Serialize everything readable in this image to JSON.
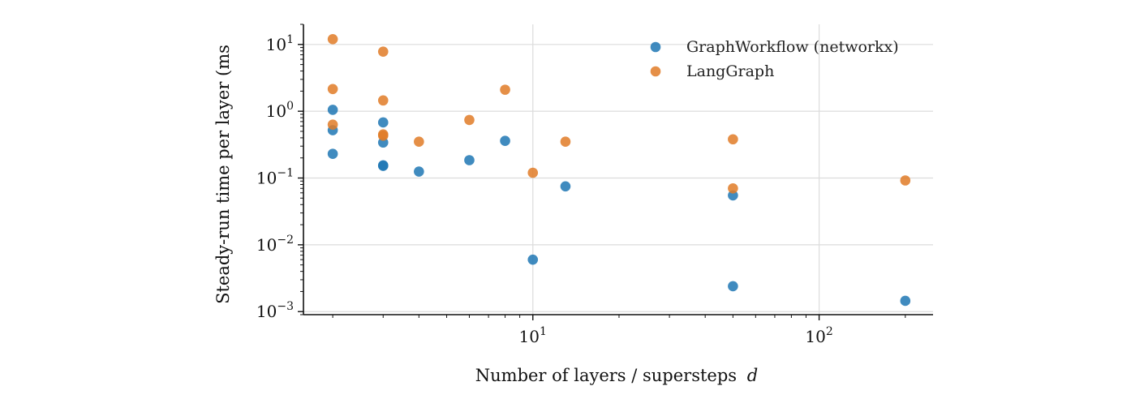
{
  "chart_data": {
    "type": "scatter",
    "title": "",
    "xlabel": "Number of layers / supersteps",
    "xlabel_var": "d",
    "ylabel": "Steady-run time per layer (ms",
    "xscale": "log",
    "yscale": "log",
    "xlim": [
      1.58,
      250
    ],
    "ylim": [
      0.0009,
      20
    ],
    "x_ticks": [
      {
        "value": 10,
        "base": "10",
        "exp": "1"
      },
      {
        "value": 100,
        "base": "10",
        "exp": "2"
      }
    ],
    "y_ticks": [
      {
        "value": 0.001,
        "base": "10",
        "exp": "−3"
      },
      {
        "value": 0.01,
        "base": "10",
        "exp": "−2"
      },
      {
        "value": 0.1,
        "base": "10",
        "exp": "−1"
      },
      {
        "value": 1,
        "base": "10",
        "exp": "0"
      },
      {
        "value": 10,
        "base": "10",
        "exp": "1"
      }
    ],
    "grid": true,
    "legend_position": "top-right",
    "series": [
      {
        "name": "GraphWorkflow (networkx)",
        "color": "#1f77b4",
        "points": [
          {
            "x": 2,
            "y": 1.05
          },
          {
            "x": 2,
            "y": 0.52
          },
          {
            "x": 2,
            "y": 0.23
          },
          {
            "x": 3,
            "y": 0.68
          },
          {
            "x": 3,
            "y": 0.34
          },
          {
            "x": 3,
            "y": 0.155
          },
          {
            "x": 3,
            "y": 0.152
          },
          {
            "x": 4,
            "y": 0.125
          },
          {
            "x": 6,
            "y": 0.185
          },
          {
            "x": 8,
            "y": 0.36
          },
          {
            "x": 10,
            "y": 0.006
          },
          {
            "x": 13,
            "y": 0.075
          },
          {
            "x": 50,
            "y": 0.055
          },
          {
            "x": 50,
            "y": 0.0024
          },
          {
            "x": 200,
            "y": 0.00145
          }
        ]
      },
      {
        "name": "LangGraph",
        "color": "#e07b27",
        "points": [
          {
            "x": 2,
            "y": 12
          },
          {
            "x": 2,
            "y": 2.15
          },
          {
            "x": 2,
            "y": 0.63
          },
          {
            "x": 3,
            "y": 7.8
          },
          {
            "x": 3,
            "y": 1.45
          },
          {
            "x": 3,
            "y": 0.45
          },
          {
            "x": 3,
            "y": 0.43
          },
          {
            "x": 4,
            "y": 0.35
          },
          {
            "x": 6,
            "y": 0.74
          },
          {
            "x": 8,
            "y": 2.1
          },
          {
            "x": 10,
            "y": 0.12
          },
          {
            "x": 13,
            "y": 0.35
          },
          {
            "x": 50,
            "y": 0.38
          },
          {
            "x": 50,
            "y": 0.07
          },
          {
            "x": 200,
            "y": 0.092
          }
        ]
      }
    ]
  }
}
